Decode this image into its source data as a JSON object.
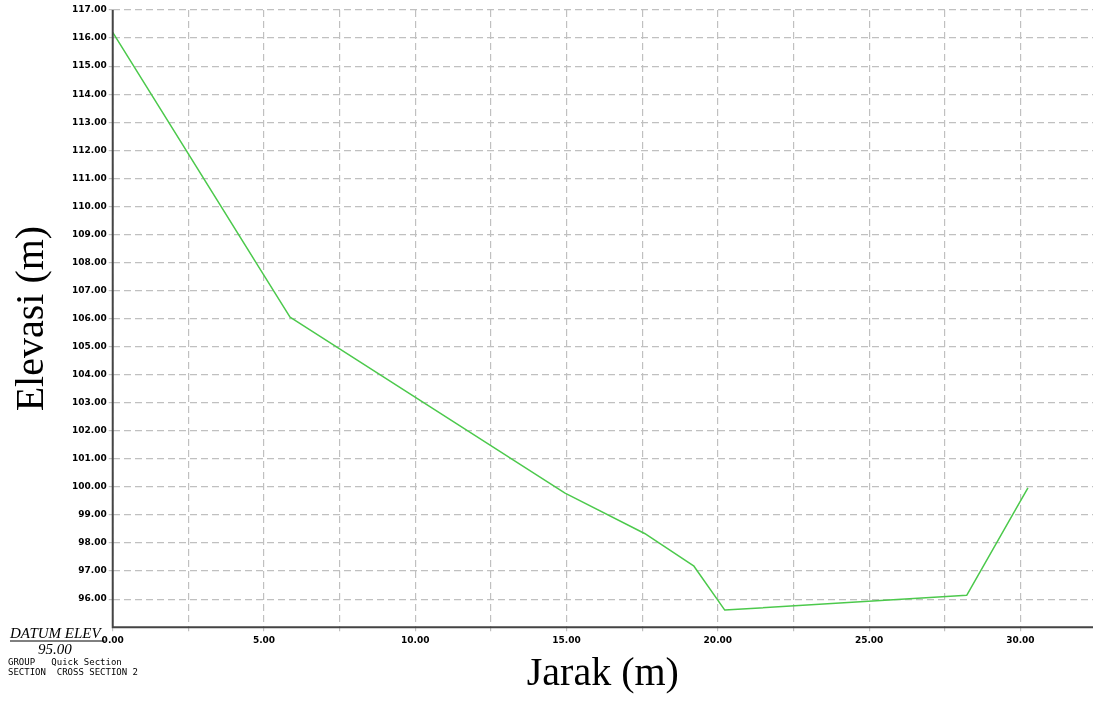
{
  "chart_data": {
    "type": "line",
    "xlabel": "Jarak (m)",
    "ylabel": "Elevasi (m)",
    "series": [
      {
        "color": "#4cc94c",
        "x": [
          0,
          5.86,
          14.95,
          17.58,
          19.2,
          20.23,
          28.23,
          30.25
        ],
        "values": [
          116.2,
          106.05,
          99.78,
          98.34,
          97.19,
          95.61,
          96.14,
          99.97
        ]
      }
    ],
    "xlim": [
      0,
      32.4
    ],
    "xticks": [
      {
        "value": 0,
        "label": "0.00"
      },
      {
        "value": 2.5,
        "label": null
      },
      {
        "value": 5,
        "label": "5.00"
      },
      {
        "value": 7.5,
        "label": null
      },
      {
        "value": 10,
        "label": "10.00"
      },
      {
        "value": 12.5,
        "label": null
      },
      {
        "value": 15,
        "label": "15.00"
      },
      {
        "value": 17.5,
        "label": null
      },
      {
        "value": 20,
        "label": "20.00"
      },
      {
        "value": 22.5,
        "label": null
      },
      {
        "value": 25,
        "label": "25.00"
      },
      {
        "value": 27.5,
        "label": null
      },
      {
        "value": 30,
        "label": "30.00"
      }
    ],
    "ylim": [
      95,
      117
    ],
    "yticks": [
      {
        "value": 96,
        "label": "96.00"
      },
      {
        "value": 97,
        "label": "97.00"
      },
      {
        "value": 98,
        "label": "98.00"
      },
      {
        "value": 99,
        "label": "99.00"
      },
      {
        "value": 100,
        "label": "100.00"
      },
      {
        "value": 101,
        "label": "101.00"
      },
      {
        "value": 102,
        "label": "102.00"
      },
      {
        "value": 103,
        "label": "103.00"
      },
      {
        "value": 104,
        "label": "104.00"
      },
      {
        "value": 105,
        "label": "105.00"
      },
      {
        "value": 106,
        "label": "106.00"
      },
      {
        "value": 107,
        "label": "107.00"
      },
      {
        "value": 108,
        "label": "108.00"
      },
      {
        "value": 109,
        "label": "109.00"
      },
      {
        "value": 110,
        "label": "110.00"
      },
      {
        "value": 111,
        "label": "111.00"
      },
      {
        "value": 112,
        "label": "112.00"
      },
      {
        "value": 113,
        "label": "113.00"
      },
      {
        "value": 114,
        "label": "114.00"
      },
      {
        "value": 115,
        "label": "115.00"
      },
      {
        "value": 116,
        "label": "116.00"
      },
      {
        "value": 117,
        "label": "117.00"
      }
    ],
    "grid": true,
    "legend": false,
    "marker": "none",
    "line_style": "solid",
    "annotations": [
      "DATUM ELEV",
      "95.00",
      "GROUP   Quick Section",
      "SECTION  CROSS SECTION 2"
    ]
  }
}
